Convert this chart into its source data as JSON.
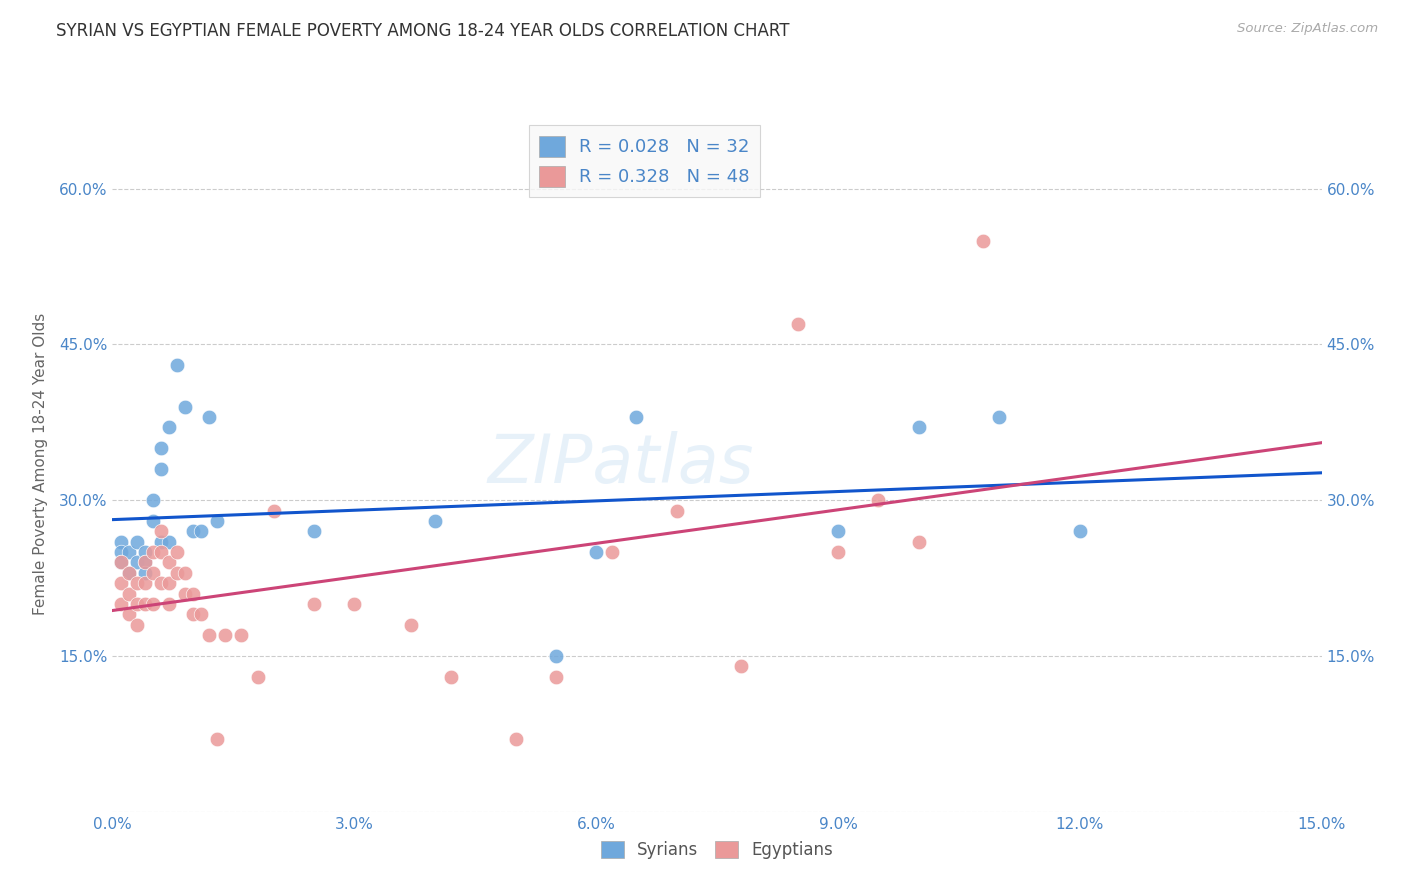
{
  "title": "SYRIAN VS EGYPTIAN FEMALE POVERTY AMONG 18-24 YEAR OLDS CORRELATION CHART",
  "source": "Source: ZipAtlas.com",
  "ylabel": "Female Poverty Among 18-24 Year Olds",
  "xlim": [
    0,
    0.15
  ],
  "ylim": [
    0,
    0.67
  ],
  "xticks": [
    0.0,
    0.03,
    0.06,
    0.09,
    0.12,
    0.15
  ],
  "yticks": [
    0.0,
    0.15,
    0.3,
    0.45,
    0.6
  ],
  "xticklabels": [
    "0.0%",
    "3.0%",
    "6.0%",
    "9.0%",
    "12.0%",
    "15.0%"
  ],
  "yticklabels": [
    "",
    "15.0%",
    "30.0%",
    "45.0%",
    "60.0%"
  ],
  "right_yticklabels": [
    "",
    "15.0%",
    "30.0%",
    "45.0%",
    "60.0%"
  ],
  "syrian_color": "#6fa8dc",
  "egyptian_color": "#ea9999",
  "syrian_line_color": "#1155cc",
  "egyptian_line_color": "#cc4477",
  "background_color": "#ffffff",
  "legend_R1": "0.028",
  "legend_N1": "32",
  "legend_R2": "0.328",
  "legend_N2": "48",
  "watermark": "ZIPatlas",
  "syrians_x": [
    0.001,
    0.001,
    0.001,
    0.002,
    0.002,
    0.003,
    0.003,
    0.004,
    0.004,
    0.004,
    0.005,
    0.005,
    0.006,
    0.006,
    0.006,
    0.007,
    0.007,
    0.008,
    0.009,
    0.01,
    0.011,
    0.012,
    0.013,
    0.025,
    0.04,
    0.055,
    0.06,
    0.065,
    0.09,
    0.1,
    0.11,
    0.12
  ],
  "syrians_y": [
    0.26,
    0.25,
    0.24,
    0.25,
    0.23,
    0.26,
    0.24,
    0.25,
    0.24,
    0.23,
    0.3,
    0.28,
    0.35,
    0.33,
    0.26,
    0.37,
    0.26,
    0.43,
    0.39,
    0.27,
    0.27,
    0.38,
    0.28,
    0.27,
    0.28,
    0.15,
    0.25,
    0.38,
    0.27,
    0.37,
    0.38,
    0.27
  ],
  "egyptians_x": [
    0.001,
    0.001,
    0.001,
    0.002,
    0.002,
    0.002,
    0.003,
    0.003,
    0.003,
    0.004,
    0.004,
    0.004,
    0.005,
    0.005,
    0.005,
    0.006,
    0.006,
    0.006,
    0.007,
    0.007,
    0.007,
    0.008,
    0.008,
    0.009,
    0.009,
    0.01,
    0.01,
    0.011,
    0.012,
    0.013,
    0.014,
    0.016,
    0.018,
    0.02,
    0.025,
    0.03,
    0.037,
    0.042,
    0.05,
    0.055,
    0.062,
    0.07,
    0.078,
    0.085,
    0.09,
    0.095,
    0.1,
    0.108
  ],
  "egyptians_y": [
    0.24,
    0.22,
    0.2,
    0.23,
    0.21,
    0.19,
    0.22,
    0.2,
    0.18,
    0.24,
    0.22,
    0.2,
    0.25,
    0.23,
    0.2,
    0.27,
    0.25,
    0.22,
    0.24,
    0.22,
    0.2,
    0.25,
    0.23,
    0.23,
    0.21,
    0.21,
    0.19,
    0.19,
    0.17,
    0.07,
    0.17,
    0.17,
    0.13,
    0.29,
    0.2,
    0.2,
    0.18,
    0.13,
    0.07,
    0.13,
    0.25,
    0.29,
    0.14,
    0.47,
    0.25,
    0.3,
    0.26,
    0.55
  ]
}
